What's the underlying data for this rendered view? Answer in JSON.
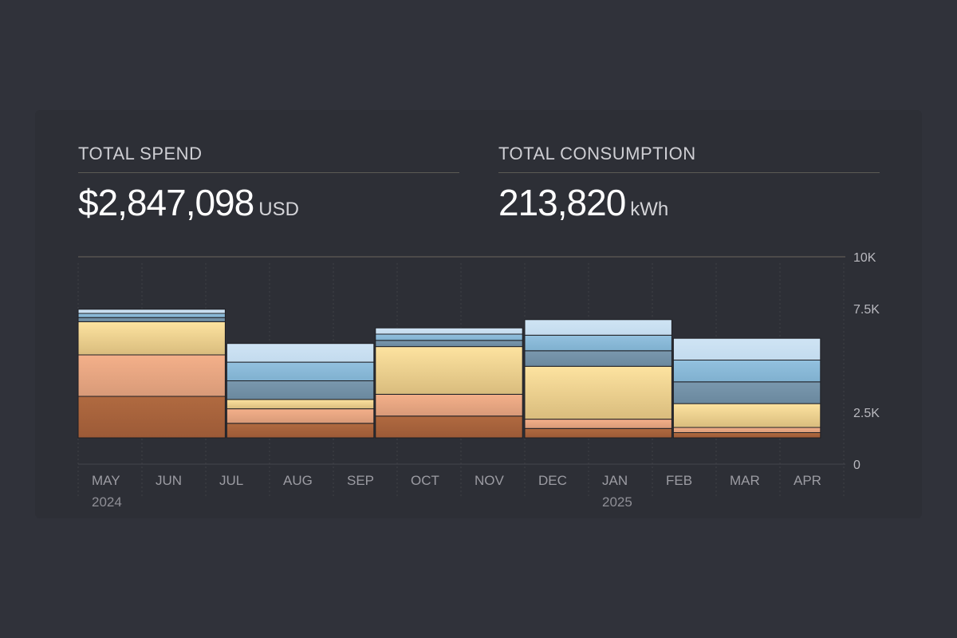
{
  "kpis": {
    "spend": {
      "label": "TOTAL SPEND",
      "value": "$2,847,098",
      "unit": "USD"
    },
    "consumption": {
      "label": "TOTAL CONSUMPTION",
      "value": "213,820",
      "unit": "kWh"
    }
  },
  "chart_data": {
    "type": "bar",
    "stacked": true,
    "title": "",
    "xlabel": "",
    "ylabel": "",
    "ylim": [
      0,
      10000
    ],
    "y_ticks": [
      {
        "value": 10000,
        "label": "10K"
      },
      {
        "value": 7500,
        "label": "7.5K"
      },
      {
        "value": 2500,
        "label": "2.5K"
      },
      {
        "value": 0,
        "label": "0"
      }
    ],
    "months": [
      "MAY",
      "JUN",
      "JUL",
      "AUG",
      "SEP",
      "OCT",
      "NOV",
      "DEC",
      "JAN",
      "FEB",
      "MAR",
      "APR"
    ],
    "year_labels": [
      {
        "month_index": 0,
        "label": "2024"
      },
      {
        "month_index": 8,
        "label": "2025"
      }
    ],
    "layer_colors": [
      [
        "#b06a40",
        "#9c5a37"
      ],
      [
        "#f4b08a",
        "#d89a78"
      ],
      [
        "#fde3a0",
        "#d9bc7d"
      ],
      [
        "#7a98ae",
        "#6a889e"
      ],
      [
        "#93c1df",
        "#7fb0cf"
      ],
      [
        "#cfe4f4",
        "#c3dbee"
      ]
    ],
    "bars": [
      {
        "start_month": 0,
        "span": 2.33,
        "layers": [
          2000,
          2000,
          1600,
          200,
          200,
          200
        ]
      },
      {
        "start_month": 2.33,
        "span": 2.33,
        "layers": [
          700,
          700,
          450,
          900,
          900,
          900
        ]
      },
      {
        "start_month": 4.66,
        "span": 2.33,
        "layers": [
          1050,
          1050,
          2300,
          300,
          300,
          300
        ]
      },
      {
        "start_month": 7.0,
        "span": 2.33,
        "layers": [
          450,
          450,
          2550,
          750,
          750,
          750
        ]
      },
      {
        "start_month": 9.33,
        "span": 2.33,
        "layers": [
          250,
          250,
          1150,
          1050,
          1050,
          1050
        ]
      }
    ]
  }
}
